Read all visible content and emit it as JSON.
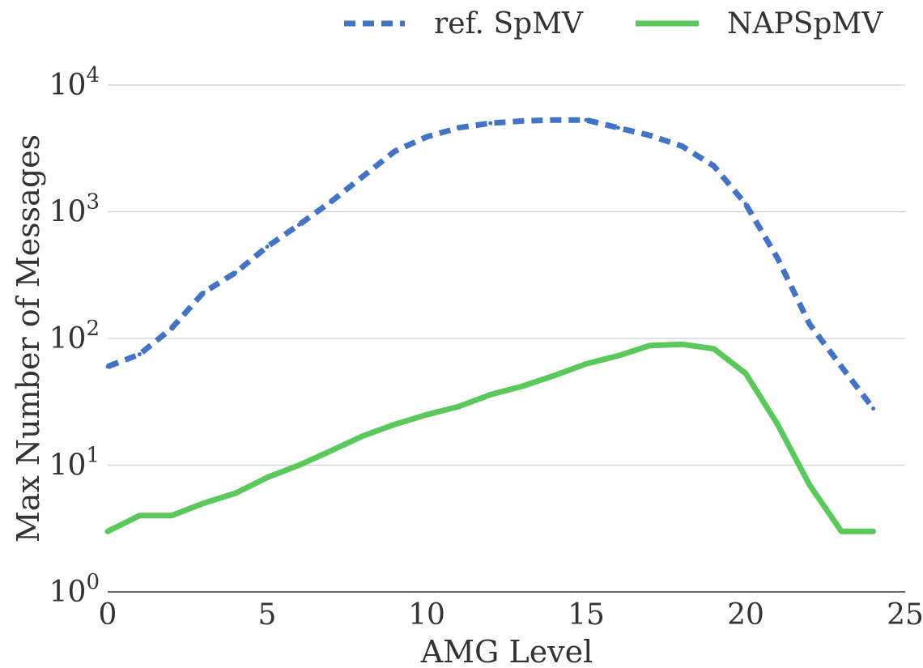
{
  "chart_data": {
    "type": "line",
    "title": "",
    "xlabel": "AMG Level",
    "ylabel": "Max Number of Messages",
    "xlim": [
      0,
      25
    ],
    "ylim_log10": [
      0,
      4
    ],
    "y_scale": "log",
    "x_ticks": [
      "0",
      "5",
      "10",
      "15",
      "20",
      "25"
    ],
    "y_ticks": [
      {
        "base": "10",
        "exp": "0"
      },
      {
        "base": "10",
        "exp": "1"
      },
      {
        "base": "10",
        "exp": "2"
      },
      {
        "base": "10",
        "exp": "3"
      },
      {
        "base": "10",
        "exp": "4"
      }
    ],
    "grid": "horizontal",
    "legend_position": "top-right",
    "x": [
      0,
      1,
      2,
      3,
      4,
      5,
      6,
      7,
      8,
      9,
      10,
      11,
      12,
      13,
      14,
      15,
      16,
      17,
      18,
      19,
      20,
      21,
      22,
      23,
      24
    ],
    "series": [
      {
        "name": "ref. SpMV",
        "style": "dashed",
        "color": "#4472c4",
        "values": [
          60,
          75,
          120,
          230,
          330,
          530,
          790,
          1200,
          1900,
          3000,
          3900,
          4600,
          5000,
          5200,
          5300,
          5300,
          4600,
          4000,
          3300,
          2300,
          1150,
          430,
          130,
          60,
          28
        ]
      },
      {
        "name": "NAPSpMV",
        "style": "solid",
        "color": "#5bc85b",
        "values": [
          3,
          4,
          4,
          5,
          6,
          8,
          10,
          13,
          17,
          21,
          25,
          29,
          36,
          42,
          51,
          63,
          73,
          88,
          90,
          83,
          53,
          21,
          7,
          3,
          3
        ]
      }
    ]
  }
}
